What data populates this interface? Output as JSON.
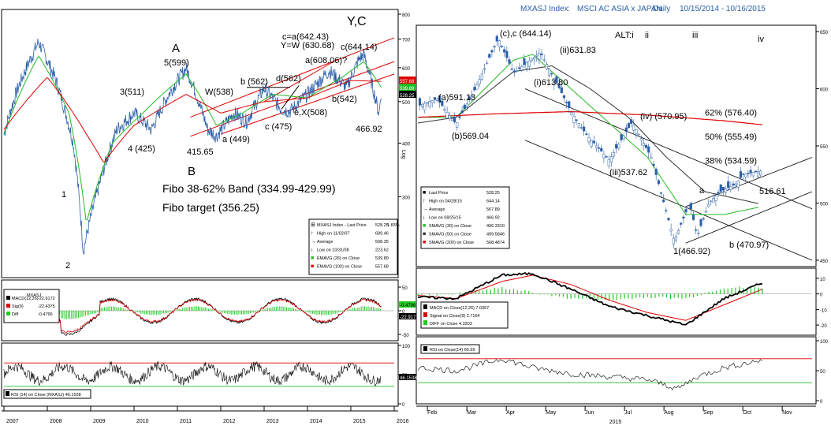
{
  "header": {
    "ticker": "MXASJ Index",
    "sep": ":",
    "name": "MSCI AC ASIA x JAPAN",
    "freq": "Daily",
    "range": "10/15/2014 - 10/16/2015"
  },
  "colors": {
    "price": "#2a5fa8",
    "ema26": "#22bb22",
    "ema100": "#e00000",
    "channel": "#e00000",
    "sma200": "#e00000",
    "sma50": "#333333",
    "sma30": "#22bb22",
    "rsi_upper": "#e00000",
    "rsi_lower": "#22bb22",
    "macd_pos": "#22cc22",
    "macd_neg": "#22cc22"
  },
  "chart_data": [
    {
      "type": "line",
      "panel": "left-price",
      "x_ticks": [
        "2007",
        "2008",
        "2009",
        "2010",
        "2011",
        "2012",
        "2013",
        "2014",
        "2015",
        "2016"
      ],
      "y_ticks": [
        "800",
        "700",
        "600",
        "500",
        "400",
        "300"
      ],
      "y_scale": "log",
      "ylim": [
        223.62,
        800
      ],
      "series": [
        {
          "name": "MXASJ Index - Last Price",
          "x": [
            2007.0,
            2007.3,
            2007.8,
            2008.2,
            2008.6,
            2008.83,
            2009.2,
            2009.6,
            2010.0,
            2010.4,
            2010.8,
            2011.2,
            2011.7,
            2011.9,
            2012.3,
            2012.6,
            2013.0,
            2013.4,
            2013.6,
            2014.0,
            2014.5,
            2014.9,
            2015.2,
            2015.3,
            2015.65,
            2015.7
          ],
          "y": [
            420,
            530,
            689,
            560,
            400,
            223.62,
            320,
            430,
            470,
            430,
            520,
            599,
            430,
            415.65,
            470,
            449,
            538,
            480,
            475,
            520,
            590,
            540,
            630.68,
            644.14,
            466.92,
            528.25
          ]
        },
        {
          "name": "EMAVG (26) on Close",
          "x": [
            2007.0,
            2007.8,
            2008.5,
            2008.9,
            2009.5,
            2010.2,
            2011.2,
            2011.9,
            2012.5,
            2013.2,
            2014.0,
            2014.8,
            2015.3,
            2015.7
          ],
          "y": [
            420,
            640,
            470,
            260,
            400,
            470,
            580,
            440,
            470,
            520,
            510,
            570,
            620,
            539.89
          ]
        },
        {
          "name": "EMAVG (100) on Close",
          "x": [
            2007.0,
            2008.0,
            2008.9,
            2009.3,
            2010.0,
            2011.2,
            2012.0,
            2013.0,
            2014.0,
            2015.0,
            2015.7
          ],
          "y": [
            430,
            570,
            420,
            360,
            440,
            520,
            470,
            500,
            510,
            560,
            557.68
          ]
        }
      ],
      "annotations": [
        "Y,C",
        "A",
        "B",
        "c=a(642.43)",
        "Y=W (630.68)",
        "a(608.06)?",
        "c(644.14)",
        "5(599)",
        "3(511)",
        "4 (425)",
        "W(538)",
        "b (562)",
        "d(562)",
        "e,X(508)",
        "c (475)",
        "a (449)",
        "415.65",
        "b(542)",
        "466.92",
        "1",
        "2",
        "Fibo 38-62% Band (334.99-429.99)",
        "Fibo target (356.25)"
      ],
      "value_labels": [
        "557.68",
        "539.89",
        "528.25"
      ],
      "legend": [
        {
          "label": "MXASJ Index - Last Price",
          "value": "528.25",
          "extra": "1.83%"
        },
        {
          "label": "High on 11/02/07",
          "value": "689.46"
        },
        {
          "label": "Average",
          "value": "508.35"
        },
        {
          "label": "Low on 10/31/08",
          "value": "223.62"
        },
        {
          "label": "EMAVG (26) on Close",
          "value": "539.89"
        },
        {
          "label": "EMAVG (100) on Close",
          "value": "557.68"
        }
      ]
    },
    {
      "type": "line",
      "panel": "left-macd",
      "title": "MXASJ",
      "y_ticks": [
        "50",
        "0",
        "-50"
      ],
      "series": [
        {
          "name": "MACD(12,26)",
          "value": "-22.9172"
        },
        {
          "name": "Sig(9)",
          "value": "-22.4375"
        },
        {
          "name": "Diff",
          "value": "-0.4796"
        }
      ],
      "value_labels": [
        "-0.4796",
        "-22.917"
      ]
    },
    {
      "type": "line",
      "panel": "left-rsi",
      "y_ticks": [
        "100",
        "50",
        "0"
      ],
      "series": [
        {
          "name": "RSI (14) on Close (MXASJ)",
          "value": "46.1538"
        }
      ],
      "value_labels": [
        "46.1538"
      ]
    },
    {
      "type": "line",
      "panel": "right-price",
      "x_ticks": [
        "Feb",
        "Mar",
        "Apr",
        "May",
        "Jun",
        "Jul",
        "Aug",
        "Sep",
        "Oct",
        "Nov"
      ],
      "x_year": "2015",
      "y_ticks": [
        "650",
        "600",
        "550",
        "500",
        "450"
      ],
      "ylim": [
        450,
        650
      ],
      "series": [
        {
          "name": "Last Price",
          "x": [
            0.0,
            0.5,
            1.0,
            1.5,
            2.1,
            2.5,
            3.2,
            3.7,
            4.0,
            4.4,
            5.0,
            5.6,
            6.1,
            6.7,
            7.1,
            7.3,
            7.6,
            7.9,
            8.3,
            8.5,
            9.0
          ],
          "y": [
            585,
            591.13,
            569.04,
            600,
            644.14,
            613.8,
            631.83,
            600,
            580,
            560,
            537.62,
            570.95,
            540,
            466.92,
            500,
            470.97,
            500,
            510,
            516.61,
            525,
            528.25
          ]
        },
        {
          "name": "SMAVG (30) on Close",
          "x": [
            0.0,
            1.0,
            2.5,
            3.0,
            4.0,
            5.0,
            6.0,
            7.0,
            8.0,
            8.9
          ],
          "y": [
            575,
            575,
            625,
            630,
            600,
            570,
            540,
            490,
            490,
            496.33
          ]
        },
        {
          "name": "SMAVG (50) on Close",
          "x": [
            0.0,
            1.0,
            2.5,
            3.5,
            4.5,
            5.5,
            6.5,
            7.5,
            8.9
          ],
          "y": [
            570,
            575,
            615,
            620,
            600,
            575,
            540,
            510,
            499.58
          ]
        },
        {
          "name": "SMAVG (200) on Close",
          "x": [
            0.0,
            2.0,
            4.0,
            6.0,
            8.0,
            9.0
          ],
          "y": [
            575,
            578,
            580,
            577,
            572,
            568.49
          ]
        }
      ],
      "annotations": [
        "(c),c (644.14)",
        "(ii)631.83",
        "(i)613.80",
        "(a)591.13",
        "(b)569.04",
        "(iv) (570.95)",
        "(iii)537.62",
        "1(466.92)",
        "b (470.97)",
        "a",
        "516.61",
        "ALT:i",
        "ii",
        "iii",
        "iv"
      ],
      "fibo_levels": [
        {
          "label": "62% (576.40)",
          "value": 576.4
        },
        {
          "label": "50% (555.49)",
          "value": 555.49
        },
        {
          "label": "38% (534.59)",
          "value": 534.59
        }
      ],
      "legend": [
        {
          "label": "Last Price",
          "value": "528.25"
        },
        {
          "label": "High on 04/28/15",
          "value": "644.14"
        },
        {
          "label": "Average",
          "value": "567.89"
        },
        {
          "label": "Low on 08/25/15",
          "value": "466.92"
        },
        {
          "label": "SMAVG (30) on Close",
          "value": "496.3310"
        },
        {
          "label": "SMAVG (50) on Close",
          "value": "499.5846"
        },
        {
          "label": "SMAVG (200) on Close",
          "value": "568.4874"
        }
      ]
    },
    {
      "type": "line",
      "panel": "right-macd",
      "y_ticks": [
        "10",
        "0",
        "-10",
        "-20"
      ],
      "series": [
        {
          "name": "MACD on Close(12,26)",
          "value": "7.0367"
        },
        {
          "name": "Signal on Close(9)",
          "value": "2.7164"
        },
        {
          "name": "DIFF on Close",
          "value": "4.3203"
        }
      ]
    },
    {
      "type": "line",
      "panel": "right-rsi",
      "y_ticks": [
        "100",
        "50",
        "0"
      ],
      "series": [
        {
          "name": "RSI on Close(14)",
          "value": "66.59"
        }
      ]
    }
  ]
}
